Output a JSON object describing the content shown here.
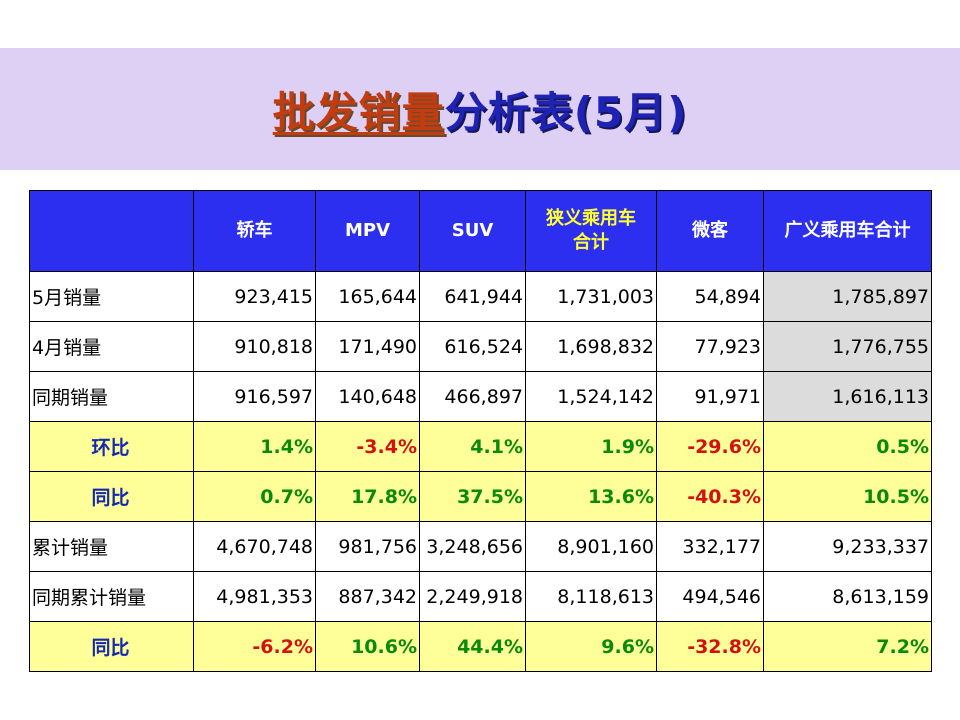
{
  "title": {
    "part1": "批发销量",
    "part2": "分析表(5月)"
  },
  "colors": {
    "banner": "#ded0f4",
    "header_bg": "#2c2ff0",
    "pct_row_bg": "#ffff99",
    "positive": "#0a8a0a",
    "negative": "#d41010",
    "total_col_bg": "#dcdcdc"
  },
  "table": {
    "headers": [
      "",
      "轿车",
      "MPV",
      "SUV",
      "狭义乘用车合计",
      "微客",
      "广义乘用车合计"
    ],
    "rows": [
      {
        "label": "5月销量",
        "values": [
          "923,415",
          "165,644",
          "641,944",
          "1,731,003",
          "54,894",
          "1,785,897"
        ]
      },
      {
        "label": "4月销量",
        "values": [
          "910,818",
          "171,490",
          "616,524",
          "1,698,832",
          "77,923",
          "1,776,755"
        ]
      },
      {
        "label": "同期销量",
        "values": [
          "916,597",
          "140,648",
          "466,897",
          "1,524,142",
          "91,971",
          "1,616,113"
        ]
      },
      {
        "label": "环比",
        "values": [
          "1.4%",
          "-3.4%",
          "4.1%",
          "1.9%",
          "-29.6%",
          "0.5%"
        ]
      },
      {
        "label": "同比",
        "values": [
          "0.7%",
          "17.8%",
          "37.5%",
          "13.6%",
          "-40.3%",
          "10.5%"
        ]
      },
      {
        "label": "累计销量",
        "values": [
          "4,670,748",
          "981,756",
          "3,248,656",
          "8,901,160",
          "332,177",
          "9,233,337"
        ]
      },
      {
        "label": "同期累计销量",
        "values": [
          "4,981,353",
          "887,342",
          "2,249,918",
          "8,118,613",
          "494,546",
          "8,613,159"
        ]
      },
      {
        "label": "同比",
        "values": [
          "-6.2%",
          "10.6%",
          "44.4%",
          "9.6%",
          "-32.8%",
          "7.2%"
        ]
      }
    ]
  }
}
